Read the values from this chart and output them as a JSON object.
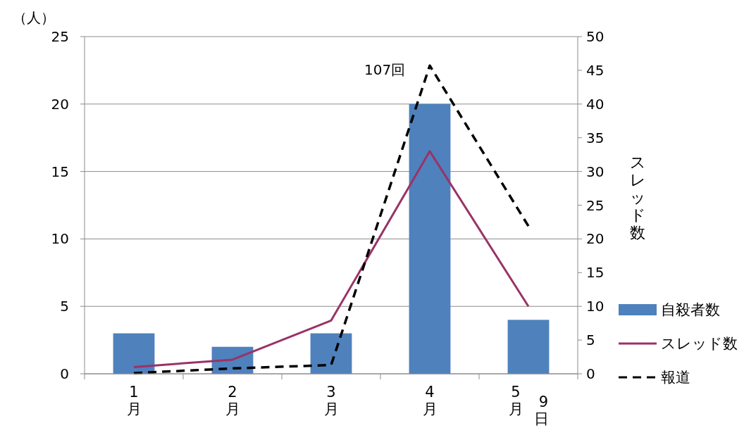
{
  "chart_data": {
    "type": "bar",
    "ylabel": "（人）",
    "y2label": "スレッド数",
    "categories": [
      "1月",
      "2月",
      "3月",
      "4月",
      "5月 9日"
    ],
    "series": [
      {
        "name": "自殺者数",
        "color": "#4f81bd",
        "values": [
          3,
          2,
          3,
          20,
          4
        ]
      },
      {
        "name": "スレッド数",
        "type": "line",
        "axis": "y2",
        "color": "#993366",
        "values": [
          1.0,
          2.1,
          7.9,
          33,
          10
        ]
      },
      {
        "name": "報道",
        "type": "line",
        "axis": "y2",
        "color": "#000000",
        "line_style": "dashed",
        "values": [
          0.1,
          0.8,
          1.3,
          45.7,
          21.9
        ]
      }
    ],
    "ylim": [
      0,
      25
    ],
    "yticks": [
      0,
      5,
      10,
      15,
      20,
      25
    ],
    "y2lim": [
      0,
      50
    ],
    "y2ticks": [
      0,
      5,
      10,
      15,
      20,
      25,
      30,
      35,
      40,
      45,
      50
    ],
    "grid": "y",
    "legend": "right",
    "annotations": [
      "107回"
    ]
  }
}
